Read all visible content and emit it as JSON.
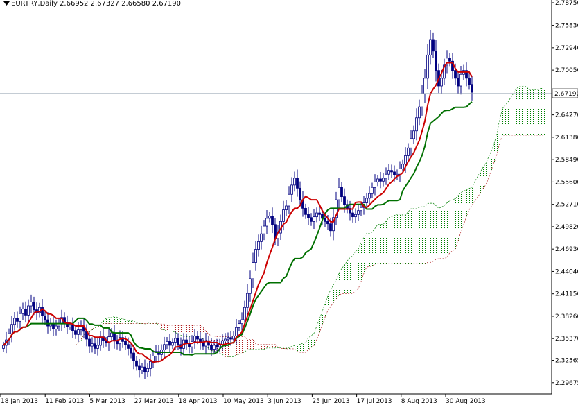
{
  "header": {
    "symbol_timeframe": "EURTRY,Daily",
    "ohlc": "2.66952 2.67327 2.66580 2.67190",
    "menu_icon": "triangle-down-icon"
  },
  "colors": {
    "tenkan": "#cc0000",
    "kijun": "#007000",
    "candle": "#000080",
    "cloud_bull": "#008000",
    "cloud_bear": "#b02020",
    "price_line": "#8899aa"
  },
  "chart_data": {
    "type": "candlestick-ichimoku",
    "symbol": "EURTRY",
    "timeframe": "Daily",
    "ylim": [
      2.2876,
      2.7875
    ],
    "y_ticks": [
      "2.78750",
      "2.75830",
      "2.72940",
      "2.70050",
      "2.67190",
      "2.64270",
      "2.61380",
      "2.58490",
      "2.55600",
      "2.52710",
      "2.49820",
      "2.46930",
      "2.44040",
      "2.41150",
      "2.38260",
      "2.35370",
      "2.32565",
      "2.29675"
    ],
    "current_price": "2.67190",
    "x_ticks": [
      "18 Jan 2013",
      "11 Feb 2013",
      "5 Mar 2013",
      "27 Mar 2013",
      "18 Apr 2013",
      "10 May 2013",
      "3 Jun 2013",
      "25 Jun 2013",
      "17 Jul 2013",
      "8 Aug 2013",
      "30 Aug 2013"
    ],
    "bars_shown": 170,
    "close": [
      2.345,
      2.352,
      2.36,
      2.372,
      2.38,
      2.376,
      2.386,
      2.392,
      2.384,
      2.396,
      2.401,
      2.391,
      2.387,
      2.394,
      2.383,
      2.378,
      2.37,
      2.373,
      2.366,
      2.37,
      2.373,
      2.381,
      2.374,
      2.369,
      2.371,
      2.364,
      2.359,
      2.365,
      2.37,
      2.363,
      2.353,
      2.344,
      2.347,
      2.341,
      2.345,
      2.356,
      2.351,
      2.348,
      2.356,
      2.361,
      2.351,
      2.347,
      2.355,
      2.35,
      2.346,
      2.341,
      2.335,
      2.325,
      2.318,
      2.313,
      2.317,
      2.311,
      2.315,
      2.324,
      2.331,
      2.337,
      2.333,
      2.339,
      2.346,
      2.35,
      2.345,
      2.349,
      2.354,
      2.346,
      2.341,
      2.352,
      2.348,
      2.343,
      2.35,
      2.357,
      2.353,
      2.349,
      2.344,
      2.351,
      2.345,
      2.34,
      2.345,
      2.343,
      2.346,
      2.351,
      2.353,
      2.355,
      2.353,
      2.357,
      2.368,
      2.373,
      2.378,
      2.394,
      2.412,
      2.431,
      2.452,
      2.469,
      2.479,
      2.489,
      2.499,
      2.509,
      2.512,
      2.501,
      2.483,
      2.49,
      2.505,
      2.52,
      2.525,
      2.54,
      2.552,
      2.561,
      2.548,
      2.533,
      2.522,
      2.514,
      2.51,
      2.505,
      2.511,
      2.516,
      2.514,
      2.509,
      2.505,
      2.502,
      2.493,
      2.51,
      2.533,
      2.549,
      2.537,
      2.527,
      2.522,
      2.516,
      2.511,
      2.514,
      2.519,
      2.523,
      2.529,
      2.535,
      2.541,
      2.549,
      2.556,
      2.56,
      2.557,
      2.561,
      2.566,
      2.571,
      2.569,
      2.565,
      2.566,
      2.573,
      2.579,
      2.59,
      2.6,
      2.612,
      2.622,
      2.639,
      2.653,
      2.67,
      2.69,
      2.72,
      2.74,
      2.725,
      2.7,
      2.68,
      2.69,
      2.707,
      2.716,
      2.712,
      2.7,
      2.69,
      2.68,
      2.695,
      2.7,
      2.69,
      2.682,
      2.672
    ],
    "tenkan_note": "red line",
    "kijun_note": "green line",
    "cloud_note": "dotted Senkou span cloud shifted forward"
  }
}
